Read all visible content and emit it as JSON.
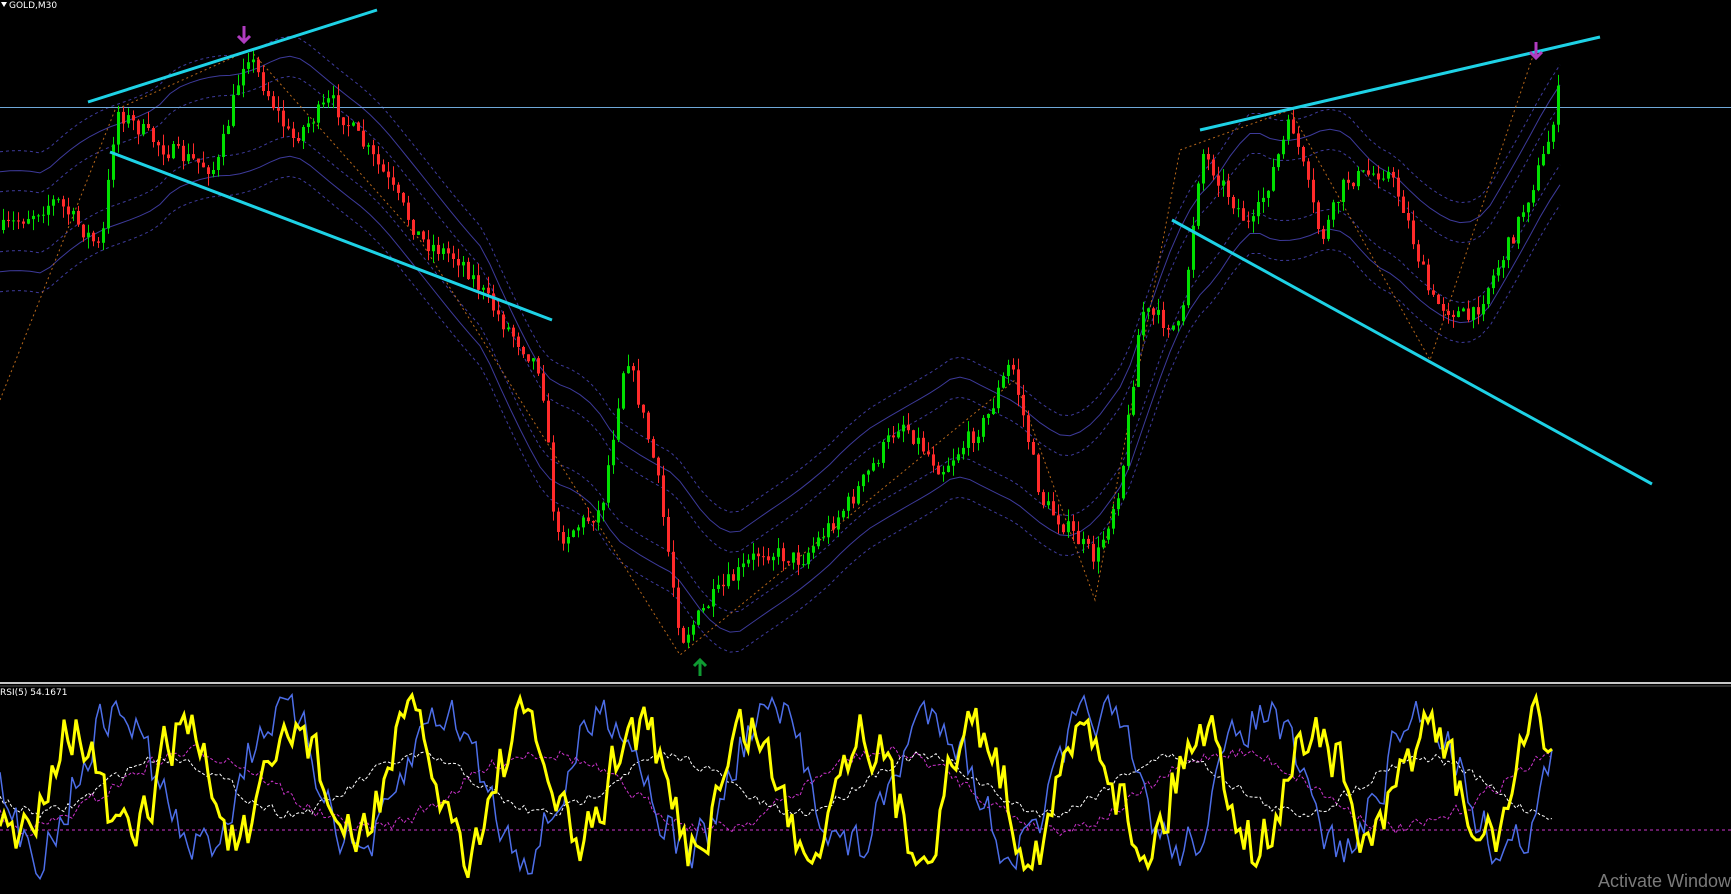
{
  "chart": {
    "title": "GOLD,M30"
  },
  "indicator": {
    "label": "RSI(5) 54.1671"
  },
  "watermark": {
    "text": "Activate Window"
  },
  "colors": {
    "background": "#000000",
    "bull_candle": "#00e000",
    "bear_candle": "#ff2a2a",
    "trendline": "#1ed2e6",
    "price_line": "#6fa8d8",
    "envelope": "#3d3a9a",
    "zigzag": "#b8681a",
    "arrow_down": "#b03cc0",
    "arrow_up": "#0f9a32",
    "rsi_main": "#ffff00",
    "rsi_fast": "#4d6ee8",
    "rsi_ma": "#ffffff",
    "rsi_slow": "#cc33cc"
  },
  "icons": [
    "symbol-menu-icon",
    "sell-arrow-icon",
    "buy-arrow-icon"
  ]
}
